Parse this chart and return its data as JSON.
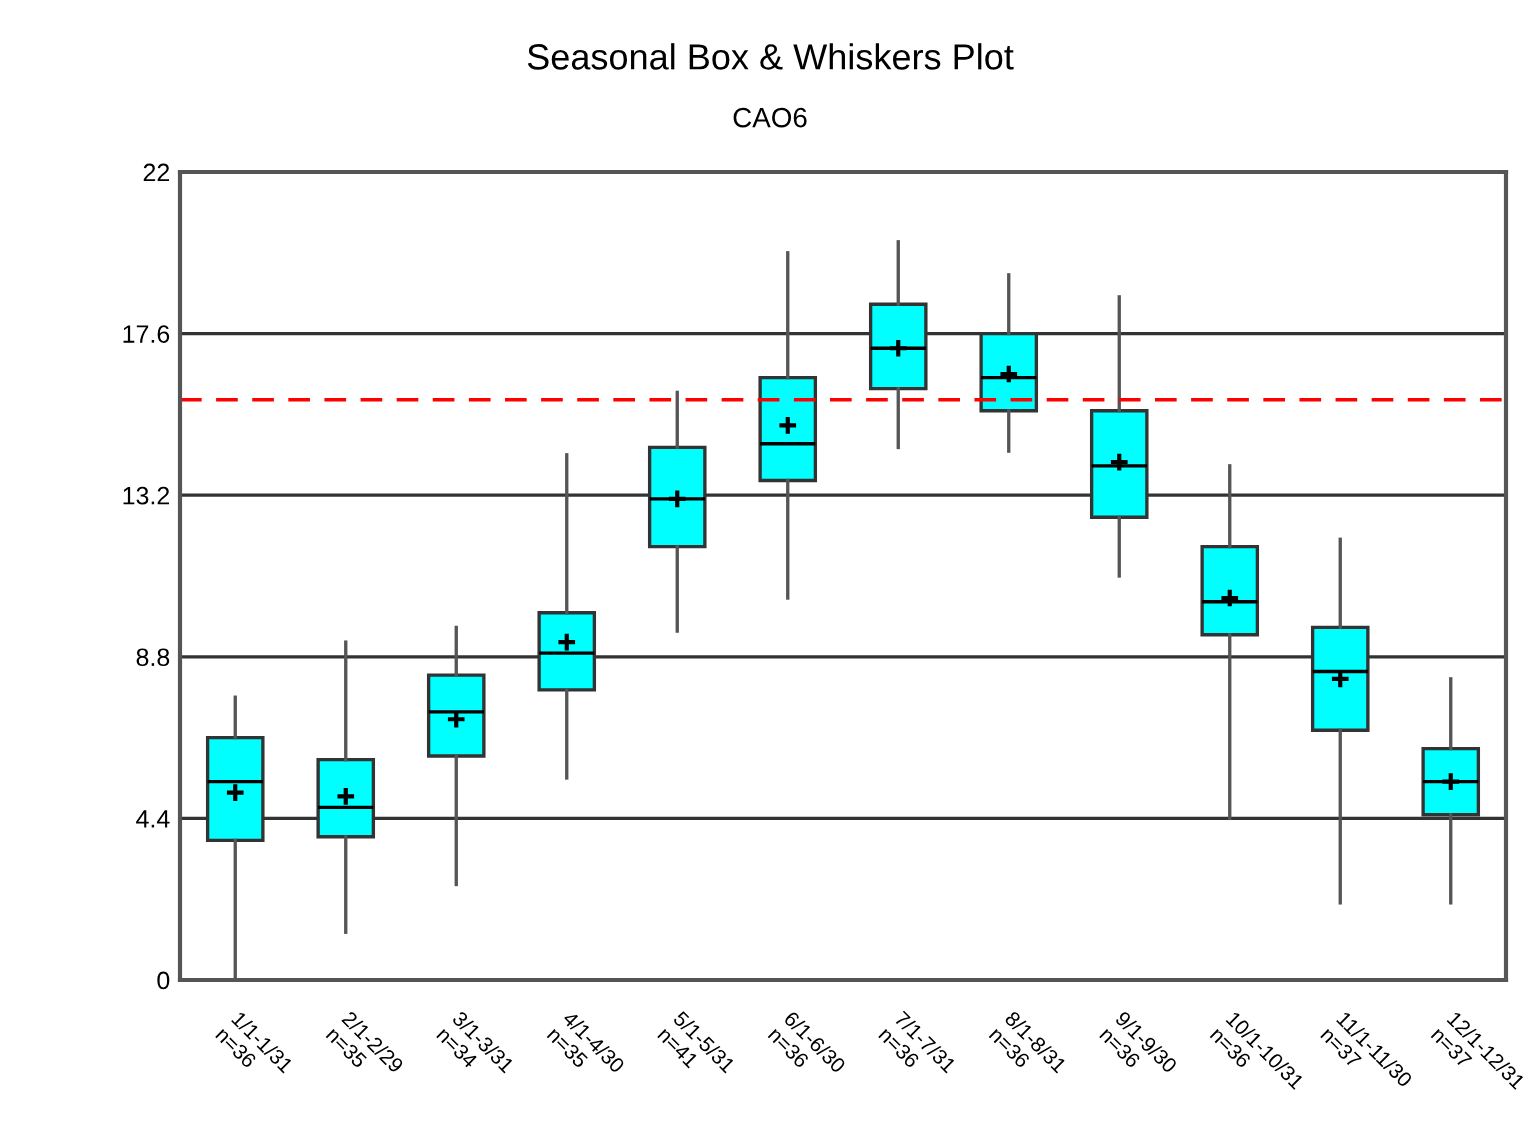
{
  "chart_data": {
    "type": "box",
    "title": "Seasonal Box & Whiskers Plot",
    "subtitle": "CAO6",
    "categories": [
      "1/1-1/31\nn=36",
      "2/1-2/29\nn=35",
      "3/1-3/31\nn=34",
      "4/1-4/30\nn=35",
      "5/1-5/31\nn=41",
      "6/1-6/30\nn=36",
      "7/1-7/31\nn=36",
      "8/1-8/31\nn=36",
      "9/1-9/30\nn=36",
      "10/1-10/31\nn=36",
      "11/1-11/30\nn=37",
      "12/1-12/31\nn=37"
    ],
    "color": "#00ffff",
    "boxes": [
      {
        "low": 0.0,
        "q1": 3.8,
        "median": 5.4,
        "q3": 6.6,
        "high": 7.7,
        "mean": 5.1
      },
      {
        "low": 1.3,
        "q1": 3.9,
        "median": 4.7,
        "q3": 6.0,
        "high": 9.2,
        "mean": 5.0
      },
      {
        "low": 2.6,
        "q1": 6.1,
        "median": 7.3,
        "q3": 8.3,
        "high": 9.6,
        "mean": 7.1
      },
      {
        "low": 5.5,
        "q1": 7.9,
        "median": 8.9,
        "q3": 10.0,
        "high": 14.3,
        "mean": 9.2
      },
      {
        "low": 9.5,
        "q1": 11.8,
        "median": 13.1,
        "q3": 14.5,
        "high": 16.0,
        "mean": 13.1
      },
      {
        "low": 10.4,
        "q1": 13.6,
        "median": 14.6,
        "q3": 16.4,
        "high": 19.8,
        "mean": 15.1
      },
      {
        "low": 14.5,
        "q1": 16.1,
        "median": 17.2,
        "q3": 18.4,
        "high": 20.1,
        "mean": 17.2
      },
      {
        "low": 14.4,
        "q1": 15.5,
        "median": 16.4,
        "q3": 17.6,
        "high": 19.2,
        "mean": 16.5
      },
      {
        "low": 11.0,
        "q1": 12.6,
        "median": 14.0,
        "q3": 15.5,
        "high": 18.6,
        "mean": 14.1
      },
      {
        "low": 4.4,
        "q1": 9.4,
        "median": 10.3,
        "q3": 11.8,
        "high": 14.0,
        "mean": 10.4
      },
      {
        "low": 2.1,
        "q1": 6.8,
        "median": 8.4,
        "q3": 9.6,
        "high": 12.0,
        "mean": 8.2
      },
      {
        "low": 2.1,
        "q1": 4.5,
        "median": 5.4,
        "q3": 6.3,
        "high": 8.2,
        "mean": 5.4
      }
    ],
    "ylim": [
      0,
      22
    ],
    "yticks": [
      0,
      4.4,
      8.8,
      13.2,
      17.6,
      22
    ],
    "grid": "y",
    "ref_lines": [
      {
        "axis": "y",
        "value": 15.8,
        "color": "#ff0000",
        "line_style": "dashed"
      }
    ]
  }
}
